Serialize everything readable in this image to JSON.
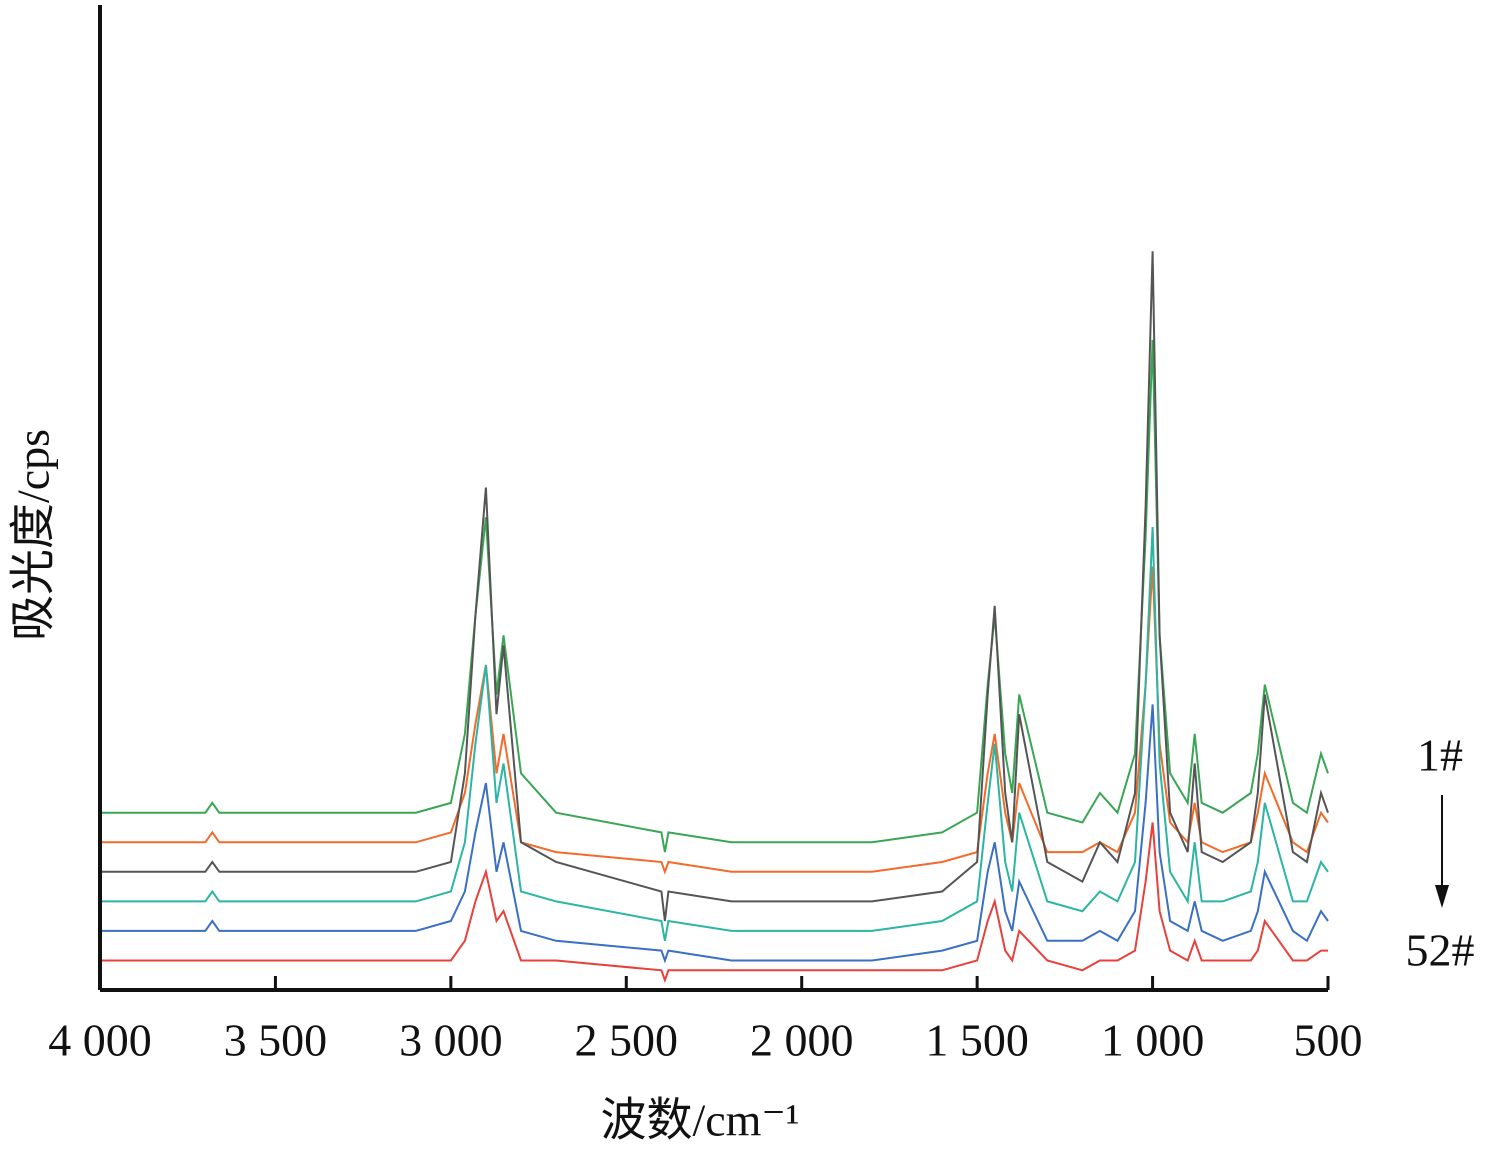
{
  "chart_data": {
    "type": "line",
    "x_label": "波数/cm⁻¹",
    "y_label": "吸光度/cps",
    "annotations": {
      "first": "1#",
      "last": "52#"
    },
    "x": [
      4000,
      3700,
      3680,
      3660,
      3100,
      3000,
      2960,
      2930,
      2900,
      2870,
      2850,
      2800,
      2700,
      2400,
      2390,
      2380,
      2200,
      2000,
      1800,
      1600,
      1500,
      1470,
      1450,
      1420,
      1400,
      1380,
      1300,
      1200,
      1150,
      1100,
      1050,
      1020,
      1000,
      980,
      950,
      900,
      880,
      860,
      800,
      720,
      700,
      680,
      600,
      560,
      520,
      500
    ],
    "xlim": [
      4000,
      500
    ],
    "xticks": [
      {
        "value": 4000,
        "label": "4 000"
      },
      {
        "value": 3500,
        "label": "3 500"
      },
      {
        "value": 3000,
        "label": "3 000"
      },
      {
        "value": 2500,
        "label": "2 500"
      },
      {
        "value": 2000,
        "label": "2 000"
      },
      {
        "value": 1500,
        "label": "1 500"
      },
      {
        "value": 1000,
        "label": "1 000"
      },
      500
    ],
    "ylim": [
      0,
      100
    ],
    "series": [
      {
        "color": "#3aa655",
        "values": [
          18,
          18,
          19,
          18,
          18,
          19,
          26,
          38,
          48,
          30,
          36,
          22,
          18,
          16,
          14,
          16,
          15,
          15,
          15,
          16,
          18,
          31,
          38,
          24,
          20,
          30,
          18,
          17,
          20,
          18,
          24,
          46,
          66,
          36,
          22,
          19,
          26,
          19,
          18,
          20,
          24,
          31,
          19,
          18,
          24,
          22
        ]
      },
      {
        "color": "#f26b2a",
        "values": [
          15,
          15,
          16,
          15,
          15,
          16,
          20,
          27,
          33,
          22,
          26,
          15,
          14,
          13,
          12,
          13,
          12,
          12,
          12,
          13,
          14,
          22,
          26,
          18,
          15,
          21,
          14,
          14,
          15,
          14,
          18,
          31,
          43,
          25,
          17,
          15,
          19,
          15,
          14,
          15,
          18,
          22,
          15,
          14,
          18,
          17
        ]
      },
      {
        "color": "#555555",
        "values": [
          12,
          12,
          13,
          12,
          12,
          13,
          22,
          38,
          51,
          28,
          35,
          15,
          13,
          10,
          7,
          10,
          9,
          9,
          9,
          10,
          13,
          30,
          39,
          20,
          15,
          28,
          13,
          11,
          15,
          13,
          20,
          49,
          75,
          36,
          18,
          14,
          23,
          14,
          13,
          15,
          20,
          30,
          14,
          13,
          20,
          18
        ]
      },
      {
        "color": "#2bb5a3",
        "values": [
          9,
          9,
          10,
          9,
          9,
          10,
          15,
          25,
          33,
          19,
          23,
          10,
          9,
          7,
          5,
          7,
          6,
          6,
          6,
          7,
          9,
          19,
          25,
          13,
          10,
          18,
          9,
          8,
          10,
          9,
          13,
          31,
          47,
          23,
          12,
          9,
          15,
          9,
          9,
          10,
          13,
          19,
          9,
          9,
          13,
          12
        ]
      },
      {
        "color": "#3a6fc4",
        "values": [
          6,
          6,
          7,
          6,
          6,
          7,
          10,
          16,
          21,
          12,
          15,
          6,
          5,
          4,
          3,
          4,
          3,
          3,
          3,
          4,
          5,
          12,
          15,
          8,
          6,
          11,
          5,
          5,
          6,
          5,
          8,
          19,
          29,
          14,
          7,
          6,
          9,
          6,
          5,
          6,
          8,
          12,
          6,
          5,
          8,
          7
        ]
      },
      {
        "color": "#e8413c",
        "values": [
          3,
          3,
          3,
          3,
          3,
          3,
          5,
          9,
          12,
          7,
          8,
          3,
          3,
          2,
          1,
          2,
          2,
          2,
          2,
          2,
          3,
          7,
          9,
          4,
          3,
          6,
          3,
          2,
          3,
          3,
          4,
          11,
          17,
          8,
          4,
          3,
          5,
          3,
          3,
          3,
          4,
          7,
          3,
          3,
          4,
          4
        ]
      }
    ]
  }
}
